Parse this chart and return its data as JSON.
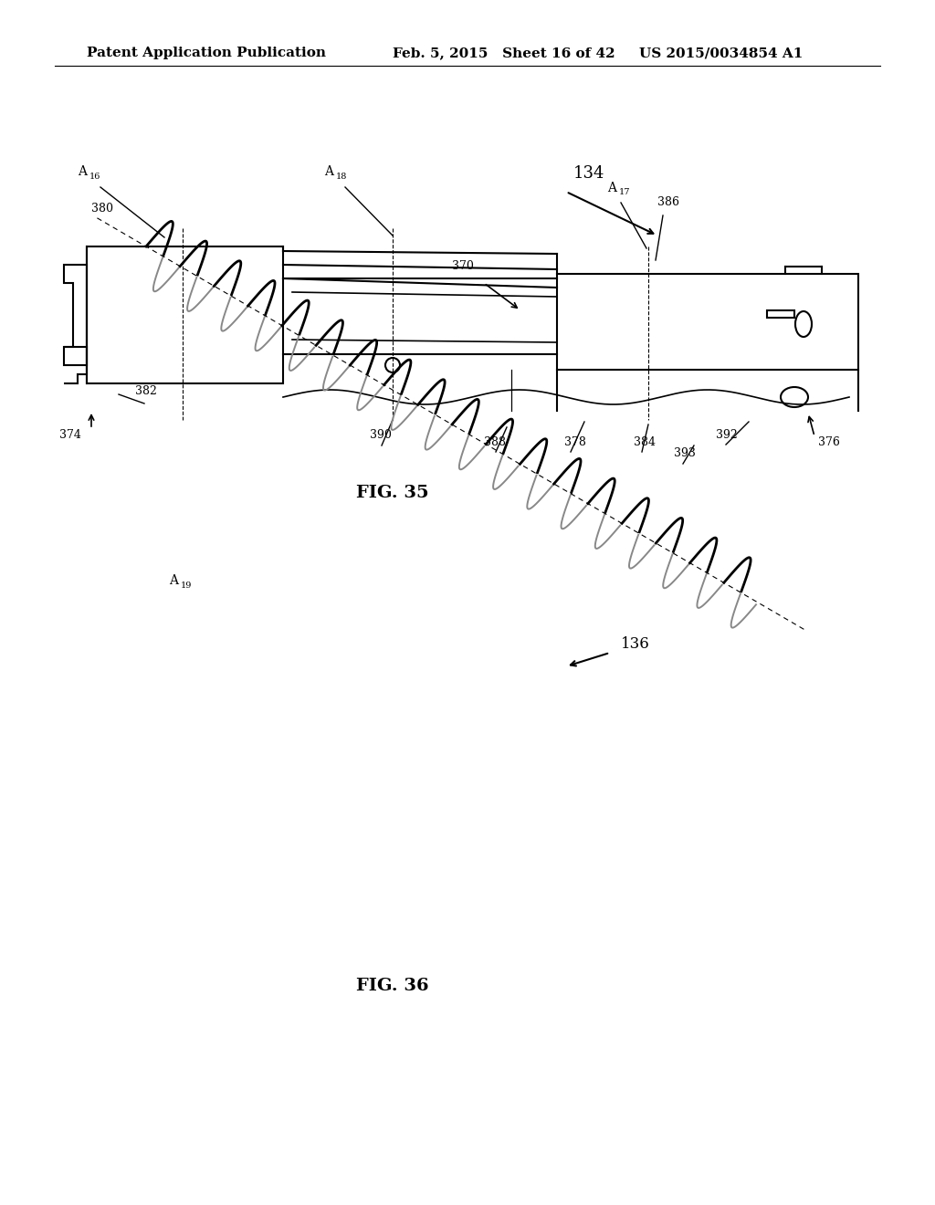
{
  "background_color": "#ffffff",
  "header_left": "Patent Application Publication",
  "header_mid": "Feb. 5, 2015   Sheet 16 of 42",
  "header_right": "US 2015/0034854 A1",
  "fig35_label": "FIG. 35",
  "fig36_label": "FIG. 36",
  "label_134": "134",
  "label_136": "136",
  "label_A16": "A",
  "label_A16_sub": "16",
  "label_A17": "A",
  "label_A17_sub": "17",
  "label_A18": "A",
  "label_A18_sub": "18",
  "label_A19": "A",
  "label_A19_sub": "19",
  "labels_35": [
    "380",
    "382",
    "374",
    "390",
    "388",
    "378",
    "384",
    "393",
    "392",
    "376",
    "370",
    "386"
  ],
  "line_color": "#000000",
  "text_color": "#000000",
  "font_size_header": 11,
  "font_size_label": 10,
  "font_size_fig": 13
}
